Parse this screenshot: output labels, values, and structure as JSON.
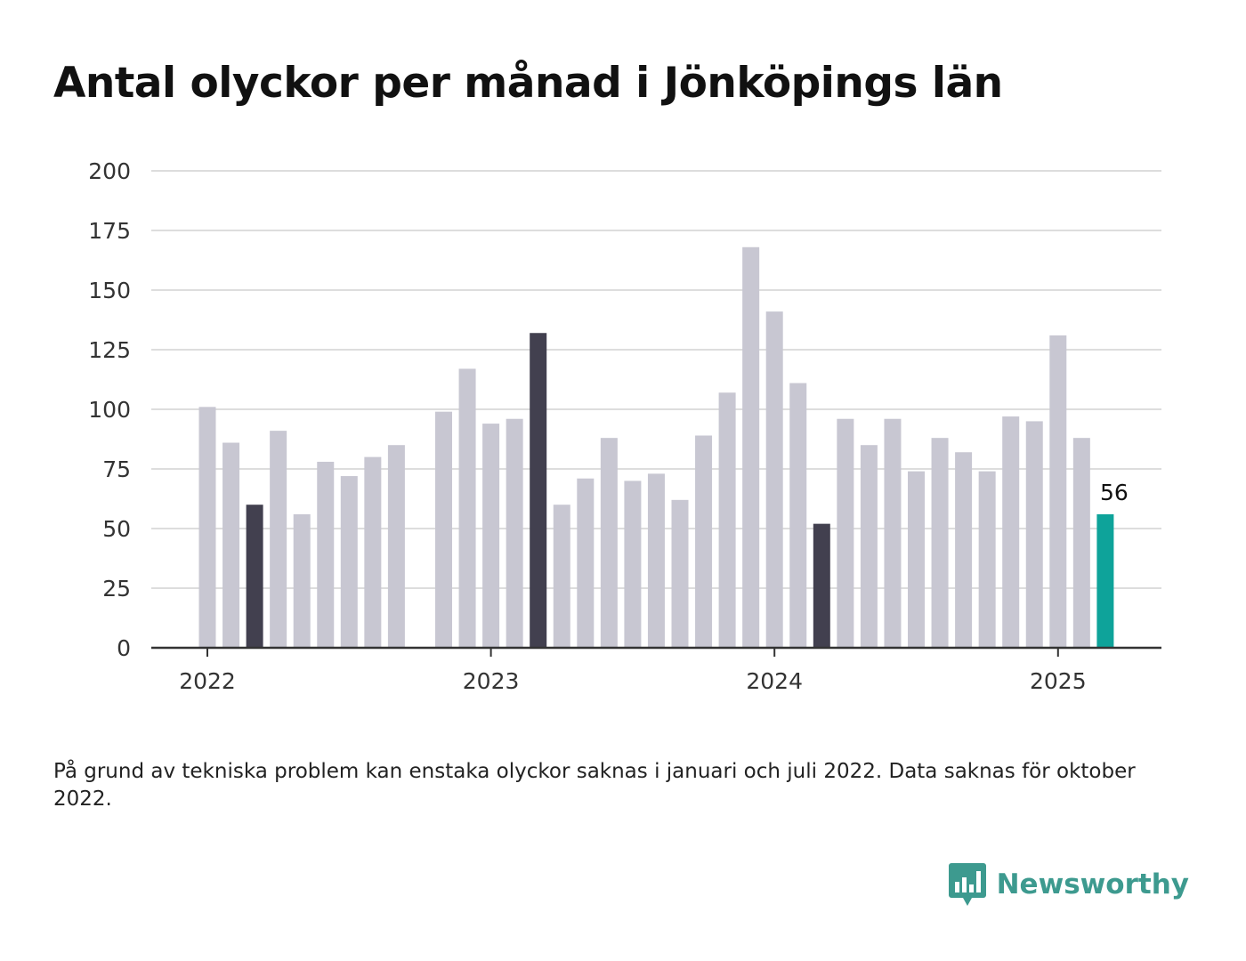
{
  "title": "Antal olyckor per månad i Jönköpings län",
  "footnote": "På grund av tekniska problem kan enstaka olyckor saknas i januari och juli 2022. Data saknas för oktober 2022.",
  "brand": {
    "name": "Newsworthy",
    "icon": "newsworthy-logo-icon"
  },
  "colors": {
    "bar": "#c8c7d2",
    "highlight": "#42404f",
    "latest": "#0ea39a",
    "grid": "#dddddd",
    "axis": "#333333"
  },
  "chart_data": {
    "type": "bar",
    "title": "Antal olyckor per månad i Jönköpings län",
    "xlabel": "",
    "ylabel": "",
    "ylim": [
      0,
      200
    ],
    "yticks": [
      0,
      25,
      50,
      75,
      100,
      125,
      150,
      175,
      200
    ],
    "xtick_labels": [
      {
        "label": "2022",
        "month_index": 0
      },
      {
        "label": "2023",
        "month_index": 12
      },
      {
        "label": "2024",
        "month_index": 24
      },
      {
        "label": "2025",
        "month_index": 36
      }
    ],
    "grid": true,
    "legend": "none",
    "months": [
      "2022-01",
      "2022-02",
      "2022-03",
      "2022-04",
      "2022-05",
      "2022-06",
      "2022-07",
      "2022-08",
      "2022-09",
      "2022-10",
      "2022-11",
      "2022-12",
      "2023-01",
      "2023-02",
      "2023-03",
      "2023-04",
      "2023-05",
      "2023-06",
      "2023-07",
      "2023-08",
      "2023-09",
      "2023-10",
      "2023-11",
      "2023-12",
      "2024-01",
      "2024-02",
      "2024-03",
      "2024-04",
      "2024-05",
      "2024-06",
      "2024-07",
      "2024-08",
      "2024-09",
      "2024-10",
      "2024-11",
      "2024-12",
      "2025-01",
      "2025-02",
      "2025-03"
    ],
    "values": [
      101,
      86,
      60,
      91,
      56,
      78,
      72,
      80,
      85,
      null,
      99,
      117,
      94,
      96,
      132,
      60,
      71,
      88,
      70,
      73,
      62,
      89,
      107,
      168,
      141,
      111,
      52,
      96,
      85,
      96,
      74,
      88,
      82,
      74,
      97,
      95,
      131,
      88,
      56
    ],
    "highlighted_months": [
      "2022-03",
      "2023-03",
      "2024-03"
    ],
    "latest_month": "2025-03",
    "annotations": [
      {
        "month": "2025-03",
        "text": "56"
      }
    ]
  }
}
